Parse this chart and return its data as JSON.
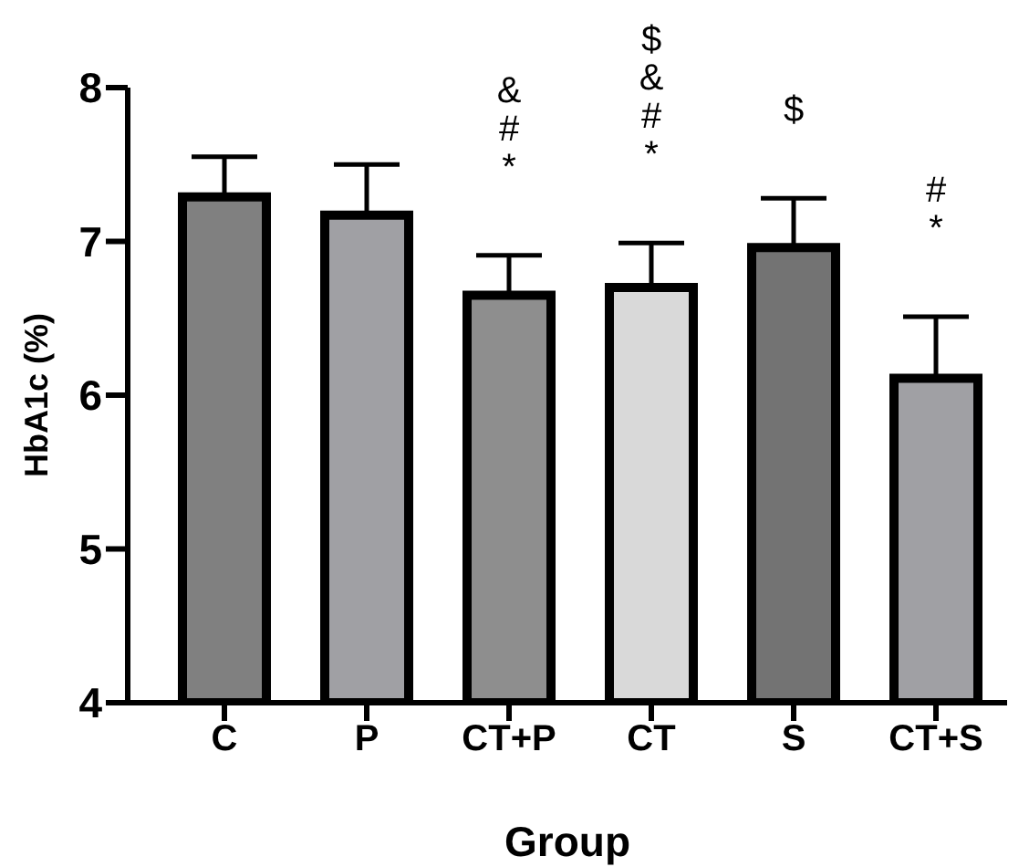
{
  "chart_data": {
    "type": "bar",
    "xlabel": "Group",
    "ylabel": "HbA1c (%)",
    "categories": [
      "C",
      "P",
      "CT+P",
      "CT",
      "S",
      "CT+S"
    ],
    "values": [
      7.29,
      7.17,
      6.65,
      6.7,
      6.96,
      6.11
    ],
    "errors": [
      0.26,
      0.33,
      0.26,
      0.29,
      0.32,
      0.4
    ],
    "colors": [
      "#808080",
      "#a0a0a4",
      "#8e8e8e",
      "#d9d9d9",
      "#737373",
      "#a0a0a4"
    ],
    "ylim": [
      4,
      8
    ],
    "yticks": [
      4,
      5,
      6,
      7,
      8
    ],
    "grid": false,
    "annotations": [
      "&\n#\n*",
      "$\n&\n#\n*",
      "$",
      "#\n*"
    ]
  }
}
